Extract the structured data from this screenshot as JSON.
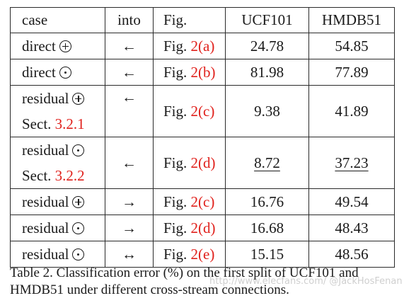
{
  "table": {
    "headers": {
      "case": "case",
      "into": "into",
      "fig": "Fig.",
      "ucf": "UCF101",
      "hmdb": "HMDB51"
    },
    "rows": [
      {
        "case": "direct",
        "op": "sum",
        "into": "←",
        "fig_prefix": "Fig.",
        "fig_ref": "2(a)",
        "ucf": "24.78",
        "hmdb": "54.85"
      },
      {
        "case": "direct",
        "op": "product",
        "into": "←",
        "fig_prefix": "Fig.",
        "fig_ref": "2(b)",
        "ucf": "81.98",
        "hmdb": "77.89"
      },
      {
        "case": "residual",
        "op": "sum",
        "sect_prefix": "Sect.",
        "sect_ref": "3.2.1",
        "into": "←",
        "fig_prefix": "Fig.",
        "fig_ref": "2(c)",
        "ucf": "9.38",
        "hmdb": "41.89"
      },
      {
        "case": "residual",
        "op": "product",
        "sect_prefix": "Sect.",
        "sect_ref": "3.2.2",
        "into": "←",
        "fig_prefix": "Fig.",
        "fig_ref": "2(d)",
        "ucf": "8.72",
        "hmdb": "37.23",
        "best": true
      },
      {
        "case": "residual",
        "op": "sum",
        "into": "→",
        "fig_prefix": "Fig.",
        "fig_ref": "2(c)",
        "ucf": "16.76",
        "hmdb": "49.54"
      },
      {
        "case": "residual",
        "op": "product",
        "into": "→",
        "fig_prefix": "Fig.",
        "fig_ref": "2(d)",
        "ucf": "16.68",
        "hmdb": "48.43"
      },
      {
        "case": "residual",
        "op": "product",
        "into": "↔",
        "fig_prefix": "Fig.",
        "fig_ref": "2(e)",
        "ucf": "15.15",
        "hmdb": "48.56"
      }
    ]
  },
  "caption": "Table 2. Classification error (%) on the first split of UCF101 and HMDB51 under different cross-stream connections.",
  "watermark": "http://www.elecfans.com/ @JackHosFenan",
  "colors": {
    "reference_red": "#e0201b",
    "text": "#1a1a1a",
    "rule": "#2a2a2a"
  }
}
